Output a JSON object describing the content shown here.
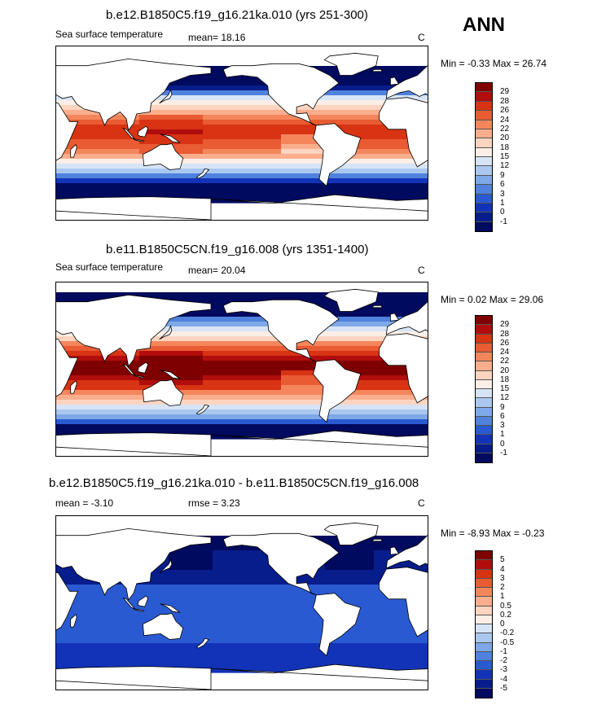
{
  "season": "ANN",
  "panels": [
    {
      "title": "b.e12.B1850C5.f19_g16.21ka.010 (yrs 251-300)",
      "left_label": "Sea surface temperature",
      "stat": "mean=  18.16",
      "units": "C",
      "minmax": "Min =  -0.33 Max =  26.74",
      "labels": [
        "29",
        "28",
        "26",
        "24",
        "22",
        "20",
        "18",
        "15",
        "12",
        "9",
        "6",
        "3",
        "1",
        "0",
        "-1"
      ],
      "colors": [
        "#7f0000",
        "#b20d0d",
        "#d83313",
        "#e95b32",
        "#f5865c",
        "#fbae8d",
        "#fdd4c0",
        "#fbeee7",
        "#d6e4f6",
        "#aac8ef",
        "#7ea8e7",
        "#4f81dd",
        "#2a5ad2",
        "#1233b8",
        "#081d8c",
        "#000a5e"
      ],
      "field": "warm"
    },
    {
      "title": "b.e11.B1850C5CN.f19_g16.008 (yrs 1351-1400)",
      "left_label": "Sea surface temperature",
      "stat": "mean=  20.04",
      "units": "C",
      "minmax": "Min =  0.02 Max =  29.06",
      "labels": [
        "29",
        "28",
        "26",
        "24",
        "22",
        "20",
        "18",
        "15",
        "12",
        "9",
        "6",
        "3",
        "1",
        "0",
        "-1"
      ],
      "colors": [
        "#7f0000",
        "#b20d0d",
        "#d83313",
        "#e95b32",
        "#f5865c",
        "#fbae8d",
        "#fdd4c0",
        "#fbeee7",
        "#d6e4f6",
        "#aac8ef",
        "#7ea8e7",
        "#4f81dd",
        "#2a5ad2",
        "#1233b8",
        "#081d8c",
        "#000a5e"
      ],
      "field": "warmer"
    },
    {
      "title": "b.e12.B1850C5.f19_g16.21ka.010 - b.e11.B1850C5CN.f19_g16.008",
      "left_label": "mean =  -3.10",
      "stat": "rmse =   3.23",
      "units": "C",
      "minmax": "Min =  -8.93 Max =  -0.23",
      "labels": [
        "5",
        "4",
        "3",
        "2",
        "1",
        "0.5",
        "0.2",
        "0",
        "-0.2",
        "-0.5",
        "-1",
        "-2",
        "-3",
        "-4",
        "-5"
      ],
      "colors": [
        "#7f0000",
        "#b20d0d",
        "#d83313",
        "#e95b32",
        "#f5865c",
        "#fbae8d",
        "#fdd4c0",
        "#fbeee7",
        "#d6e4f6",
        "#aac8ef",
        "#7ea8e7",
        "#4f81dd",
        "#2a5ad2",
        "#1233b8",
        "#081d8c",
        "#000a5e"
      ],
      "field": "diff"
    }
  ]
}
